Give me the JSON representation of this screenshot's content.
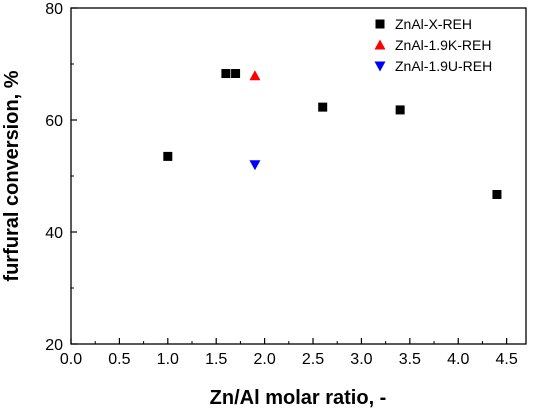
{
  "chart_data": {
    "type": "scatter",
    "title": "",
    "xlabel": "Zn/Al molar ratio, -",
    "ylabel": "furfural conversion, %",
    "xlim": [
      0.0,
      4.7
    ],
    "ylim": [
      20,
      80
    ],
    "x_ticks": [
      "0.0",
      "0.5",
      "1.0",
      "1.5",
      "2.0",
      "2.5",
      "3.0",
      "3.5",
      "4.0",
      "4.5"
    ],
    "x_tick_values": [
      0.0,
      0.5,
      1.0,
      1.5,
      2.0,
      2.5,
      3.0,
      3.5,
      4.0,
      4.5
    ],
    "y_ticks": [
      "20",
      "40",
      "60",
      "80"
    ],
    "y_tick_values": [
      20,
      40,
      60,
      80
    ],
    "grid": false,
    "legend_position": "top-right",
    "series": [
      {
        "name": "ZnAl-X-REH",
        "marker": "square",
        "color": "#000000",
        "points": [
          {
            "x": 1.0,
            "y": 53.5
          },
          {
            "x": 1.6,
            "y": 68.3
          },
          {
            "x": 1.7,
            "y": 68.3
          },
          {
            "x": 2.6,
            "y": 62.3
          },
          {
            "x": 3.4,
            "y": 61.8
          },
          {
            "x": 4.4,
            "y": 46.7
          }
        ]
      },
      {
        "name": "ZnAl-1.9K-REH",
        "marker": "triangle-up",
        "color": "#ff0000",
        "points": [
          {
            "x": 1.9,
            "y": 67.9
          }
        ]
      },
      {
        "name": "ZnAl-1.9U-REH",
        "marker": "triangle-down",
        "color": "#0000ff",
        "points": [
          {
            "x": 1.9,
            "y": 52.0
          }
        ]
      }
    ]
  }
}
